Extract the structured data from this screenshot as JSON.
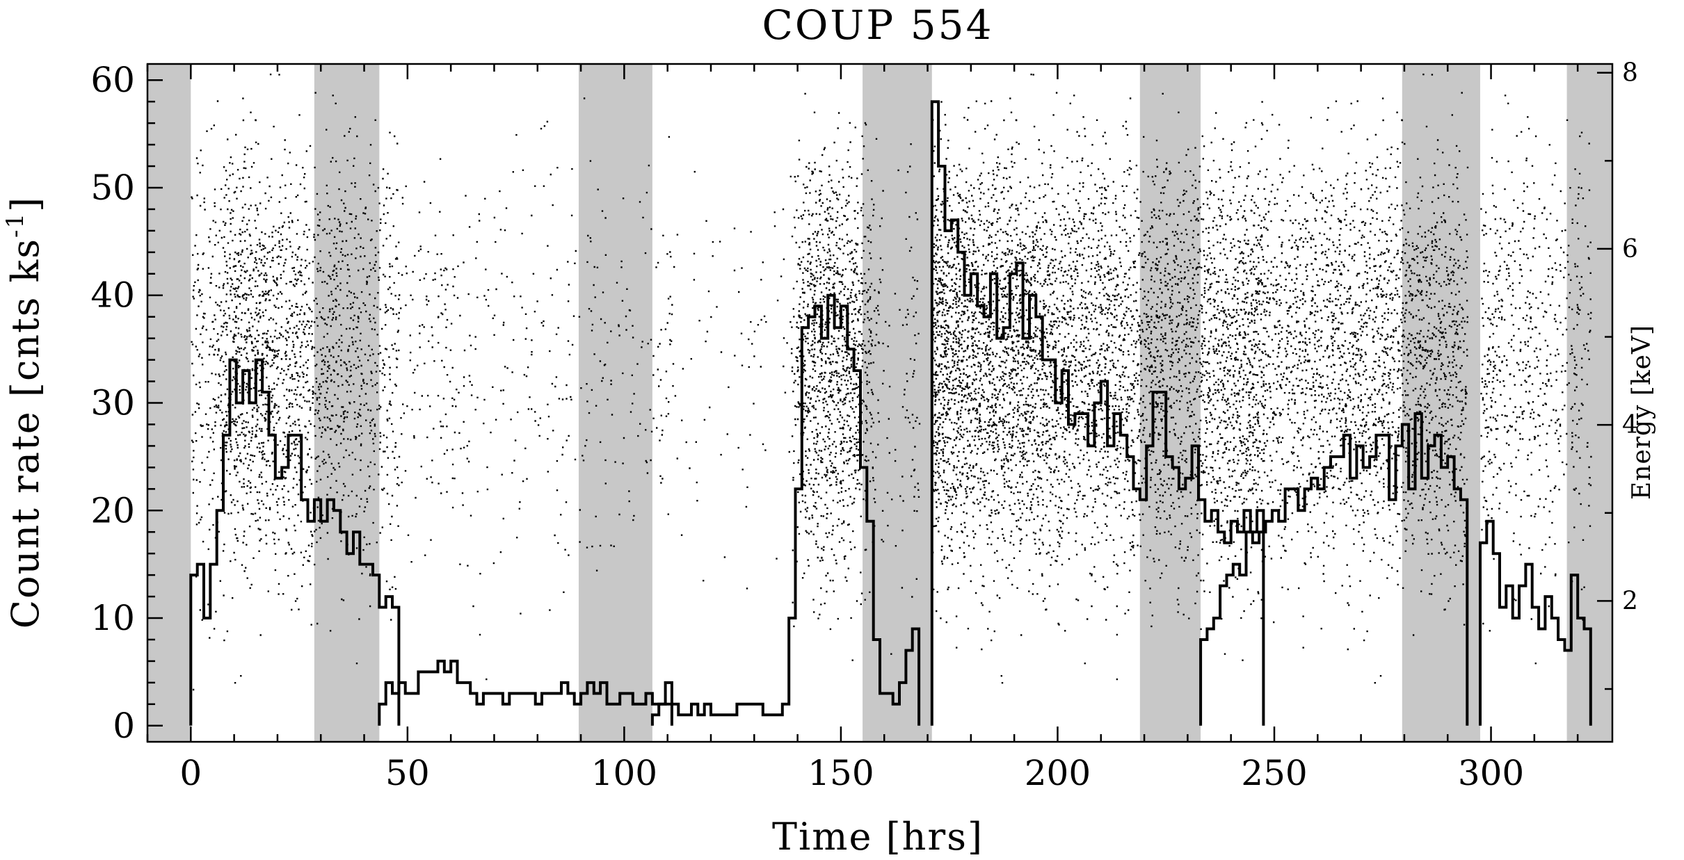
{
  "chart_data": {
    "type": "step-line-scatter",
    "title": "COUP 554",
    "xlabel": "Time [hrs]",
    "ylabel_left": "Count rate [cnts ks",
    "ylabel_left_sup": "-1",
    "ylabel_left_close": "]",
    "ylabel_right": "Energy [keV]",
    "xlim": [
      -10,
      328
    ],
    "ylim_left": [
      -1.5,
      61.5
    ],
    "ylim_right": [
      0.4,
      8.1
    ],
    "x_ticks": [
      0,
      50,
      100,
      150,
      200,
      250,
      300
    ],
    "y_ticks_left": [
      0,
      10,
      20,
      30,
      40,
      50,
      60
    ],
    "y_ticks_right": [
      2,
      4,
      6,
      8
    ],
    "grid": false,
    "gap_color": "#c8c8c8",
    "gaps": [
      [
        -10,
        0
      ],
      [
        28.5,
        43.5
      ],
      [
        89.5,
        106.5
      ],
      [
        155,
        171
      ],
      [
        219,
        233
      ],
      [
        279.5,
        297.5
      ],
      [
        317.5,
        328
      ]
    ],
    "scatter_intensity": "proportional to count rate",
    "series": [
      {
        "segment": 1,
        "x_start": 0,
        "bin_width": 1.5,
        "values": [
          14,
          15,
          10,
          15,
          20,
          27,
          34,
          30,
          33,
          30,
          34,
          31,
          27,
          23,
          24,
          27,
          27,
          21,
          19,
          21,
          19,
          21,
          20,
          18,
          16,
          18,
          15,
          15,
          14,
          11,
          12,
          11
        ]
      },
      {
        "segment": 2,
        "x_start": 43.5,
        "bin_width": 1.5,
        "values": [
          2,
          4,
          3,
          4,
          3,
          3,
          5,
          5,
          5,
          6,
          5,
          6,
          4,
          4,
          3,
          2,
          3,
          3,
          3,
          2,
          3,
          3,
          3,
          3,
          2,
          3,
          3,
          3,
          4,
          3,
          2,
          3,
          4,
          3,
          4,
          2,
          2,
          3,
          3,
          2,
          2,
          3,
          2,
          2,
          4
        ]
      },
      {
        "segment": 3,
        "x_start": 106.5,
        "bin_width": 1.5,
        "values": [
          1,
          2,
          2,
          2,
          1,
          1,
          2,
          1,
          2,
          1,
          1,
          1,
          1,
          2,
          2,
          2,
          2,
          1,
          1,
          1,
          2,
          10,
          22,
          37,
          38,
          39,
          36,
          40,
          37,
          39,
          35,
          33,
          24,
          19,
          8,
          3,
          3,
          2,
          4,
          7,
          9
        ]
      },
      {
        "segment": 4,
        "x_start": 171,
        "bin_width": 1.5,
        "values": [
          58,
          52,
          46,
          47,
          44,
          40,
          42,
          39,
          38,
          42,
          36,
          37,
          42,
          43,
          36,
          40,
          38,
          34,
          34,
          30,
          33,
          28,
          29,
          29,
          26,
          30,
          32,
          26,
          29,
          27,
          25,
          22,
          21,
          26,
          31,
          31,
          25,
          24,
          22,
          23,
          26,
          21,
          19,
          20,
          18,
          17,
          19,
          18,
          20,
          18,
          20
        ]
      },
      {
        "segment": 5,
        "x_start": 233,
        "bin_width": 1.5,
        "values": [
          8,
          9,
          10,
          13,
          14,
          15,
          14,
          18,
          17,
          18,
          19,
          20,
          19,
          22,
          22,
          20,
          22,
          23,
          22,
          24,
          25,
          25,
          27,
          23,
          26,
          24,
          25,
          27,
          27,
          21,
          26,
          28,
          22,
          29,
          23,
          26,
          27,
          24,
          25,
          22,
          21
        ]
      },
      {
        "segment": 6,
        "x_start": 297.5,
        "bin_width": 1.5,
        "values": [
          17,
          19,
          16,
          11,
          13,
          10,
          13,
          15,
          11,
          9,
          12,
          10,
          8,
          7,
          14,
          10,
          9
        ]
      }
    ]
  }
}
